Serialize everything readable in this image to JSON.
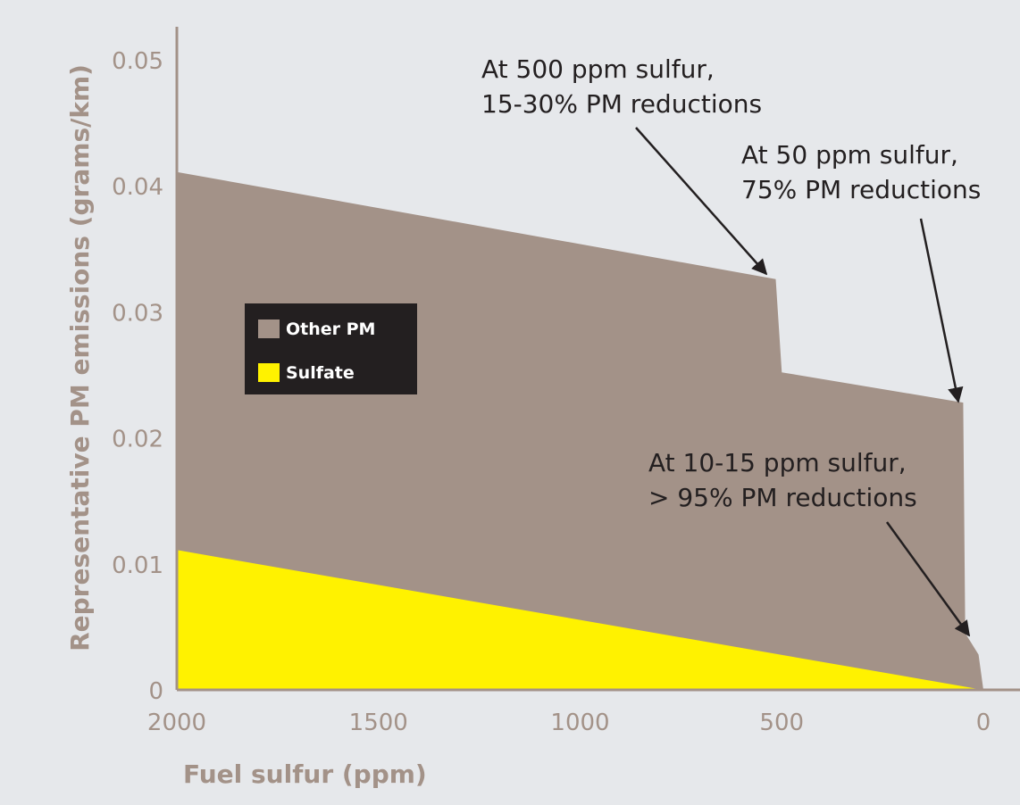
{
  "chart_data": {
    "type": "area",
    "title": "",
    "xlabel": "Fuel sulfur (ppm)",
    "ylabel": "Representative PM emissions (grams/km)",
    "x_reversed": true,
    "xlim": [
      2000,
      0
    ],
    "ylim": [
      0,
      0.05
    ],
    "x_ticks": [
      2000,
      1500,
      1000,
      500,
      0
    ],
    "x_tick_labels": [
      "2000",
      "1500",
      "1000",
      "500",
      "0"
    ],
    "y_ticks": [
      0,
      0.01,
      0.02,
      0.03,
      0.04,
      0.05
    ],
    "y_tick_labels": [
      "0",
      "0.01",
      "0.02",
      "0.03",
      "0.04",
      "0.05"
    ],
    "grid": false,
    "legend": {
      "placement": "center-left",
      "entries": [
        "Other PM",
        "Sulfate"
      ]
    },
    "series": [
      {
        "name": "Other PM",
        "color": "#a39288",
        "points": [
          {
            "x": 2000,
            "y": 0.0411
          },
          {
            "x": 515,
            "y": 0.0326
          },
          {
            "x": 500,
            "y": 0.0252
          },
          {
            "x": 50,
            "y": 0.0228
          },
          {
            "x": 45,
            "y": 0.0045
          },
          {
            "x": 12,
            "y": 0.0028
          },
          {
            "x": 0,
            "y": 0
          }
        ]
      },
      {
        "name": "Sulfate",
        "color": "#fff200",
        "points": [
          {
            "x": 2000,
            "y": 0.0111
          },
          {
            "x": 0,
            "y": 0
          }
        ]
      }
    ],
    "annotations": [
      {
        "lines": [
          "At 500 ppm sulfur,",
          "15-30% PM reductions"
        ],
        "target": {
          "x": 515,
          "y": 0.0326
        }
      },
      {
        "lines": [
          "At 50 ppm sulfur,",
          "75% PM reductions"
        ],
        "target": {
          "x": 50,
          "y": 0.0228
        }
      },
      {
        "lines": [
          "At 10-15 ppm sulfur,",
          "> 95% PM reductions"
        ],
        "target": {
          "x": 12,
          "y": 0.0045
        }
      }
    ]
  },
  "colors": {
    "background": "#e6e8eb",
    "axis": "#a39288",
    "label": "#a39288",
    "legend_bg": "#231f20",
    "legend_text": "#ffffff",
    "annotation": "#231f20"
  }
}
